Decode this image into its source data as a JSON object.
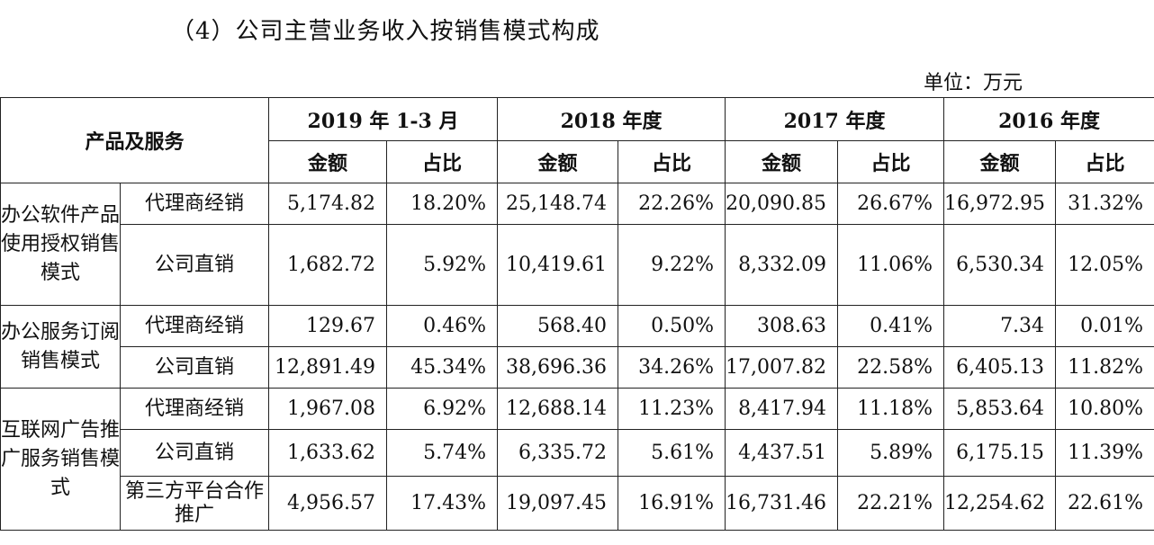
{
  "title": "（4）公司主营业务收入按销售模式构成",
  "unit": "单位：万元",
  "header": {
    "product": "产品及服务",
    "periods": [
      "2019 年 1-3 月",
      "2018 年度",
      "2017 年度",
      "2016 年度"
    ],
    "amount": "金额",
    "ratio": "占比"
  },
  "groups": [
    {
      "category": "办公软件产品使用授权销售模式",
      "rows": [
        {
          "channel": "代理商经销",
          "values": [
            "5,174.82",
            "18.20%",
            "25,148.74",
            "22.26%",
            "20,090.85",
            "26.67%",
            "16,972.95",
            "31.32%"
          ]
        },
        {
          "channel": "公司直销",
          "values": [
            "1,682.72",
            "5.92%",
            "10,419.61",
            "9.22%",
            "8,332.09",
            "11.06%",
            "6,530.34",
            "12.05%"
          ]
        }
      ]
    },
    {
      "category": "办公服务订阅销售模式",
      "rows": [
        {
          "channel": "代理商经销",
          "values": [
            "129.67",
            "0.46%",
            "568.40",
            "0.50%",
            "308.63",
            "0.41%",
            "7.34",
            "0.01%"
          ]
        },
        {
          "channel": "公司直销",
          "values": [
            "12,891.49",
            "45.34%",
            "38,696.36",
            "34.26%",
            "17,007.82",
            "22.58%",
            "6,405.13",
            "11.82%"
          ]
        }
      ]
    },
    {
      "category": "互联网广告推广服务销售模式",
      "rows": [
        {
          "channel": "代理商经销",
          "values": [
            "1,967.08",
            "6.92%",
            "12,688.14",
            "11.23%",
            "8,417.94",
            "11.18%",
            "5,853.64",
            "10.80%"
          ]
        },
        {
          "channel": "公司直销",
          "values": [
            "1,633.62",
            "5.74%",
            "6,335.72",
            "5.61%",
            "4,437.51",
            "5.89%",
            "6,175.15",
            "11.39%"
          ]
        },
        {
          "channel": "第三方平台合作推广",
          "values": [
            "4,956.57",
            "17.43%",
            "19,097.45",
            "16.91%",
            "16,731.46",
            "22.21%",
            "12,254.62",
            "22.61%"
          ]
        }
      ]
    }
  ]
}
